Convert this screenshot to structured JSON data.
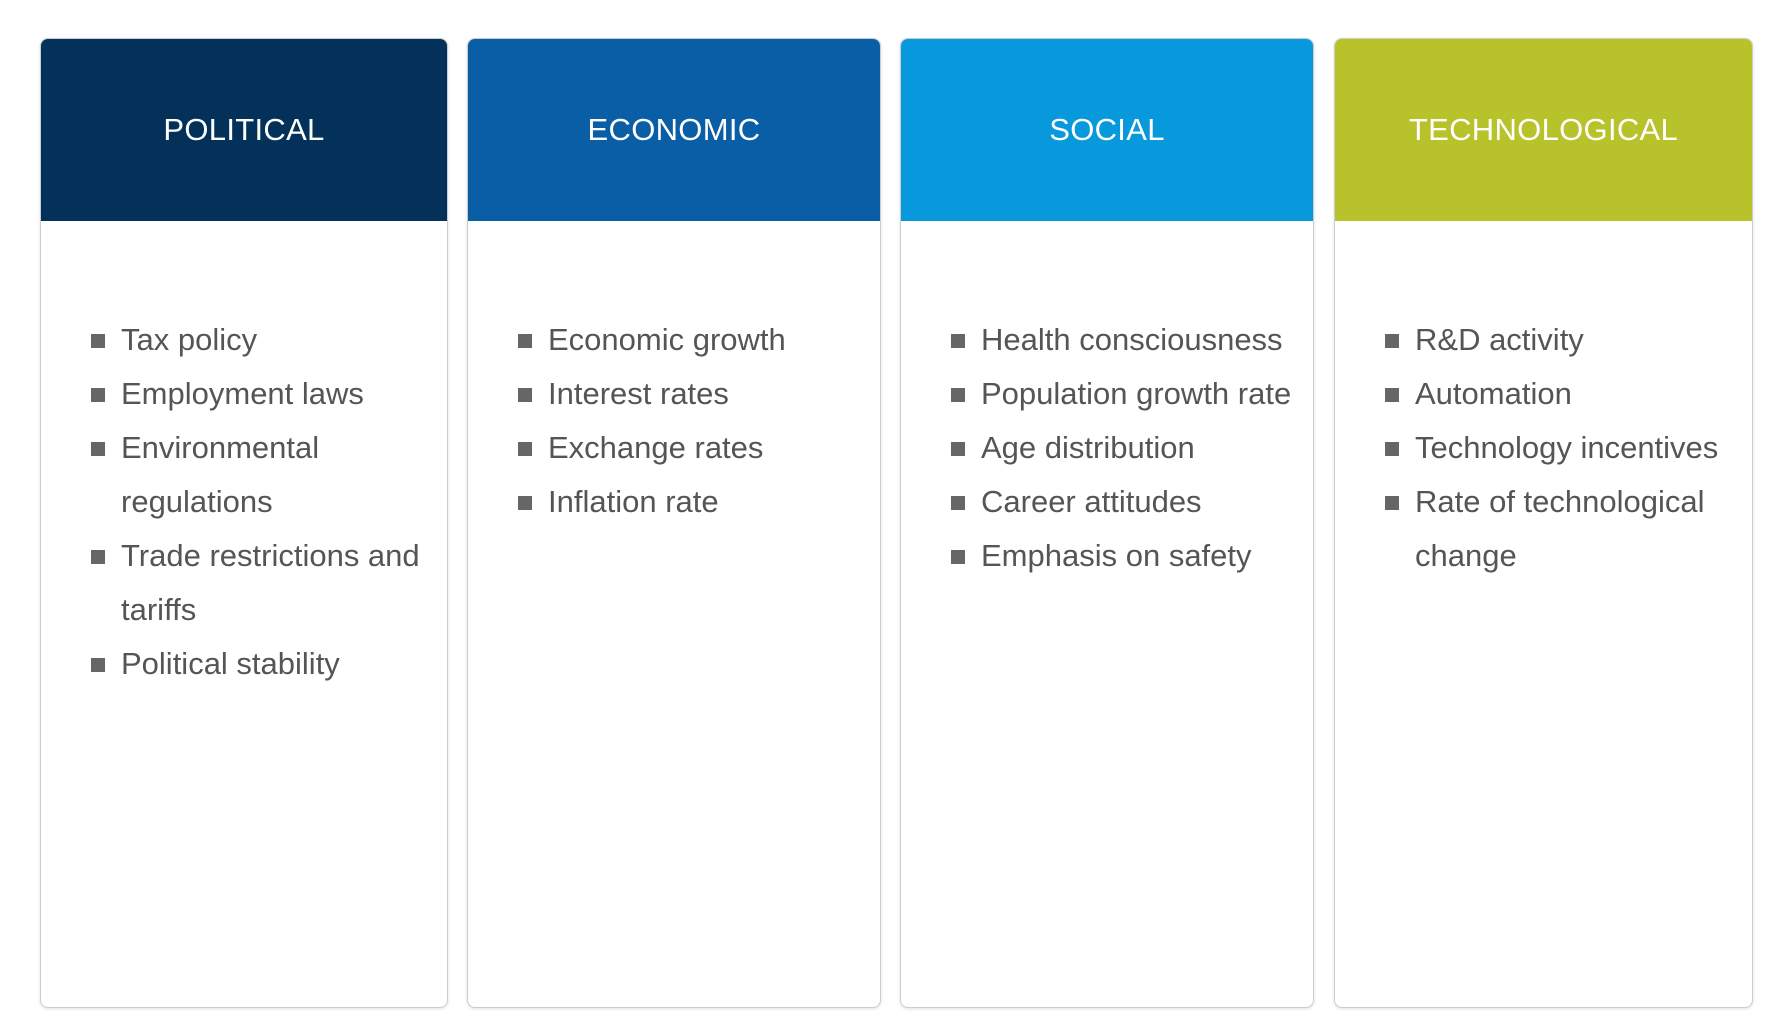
{
  "columns": [
    {
      "title": "POLITICAL",
      "items": [
        "Tax policy",
        "Employment laws",
        "Environmental regulations",
        "Trade restrictions and tariffs",
        "Political stability"
      ]
    },
    {
      "title": "ECONOMIC",
      "items": [
        "Economic growth",
        "Interest rates",
        "Exchange rates",
        "Inflation rate"
      ]
    },
    {
      "title": "SOCIAL",
      "items": [
        "Health consciousness",
        "Population growth rate",
        "Age distribution",
        "Career attitudes",
        "Emphasis on safety"
      ]
    },
    {
      "title": "TECHNOLOGICAL",
      "items": [
        "R&D activity",
        "Automation",
        "Technology incentives",
        "Rate of technological change"
      ]
    }
  ]
}
